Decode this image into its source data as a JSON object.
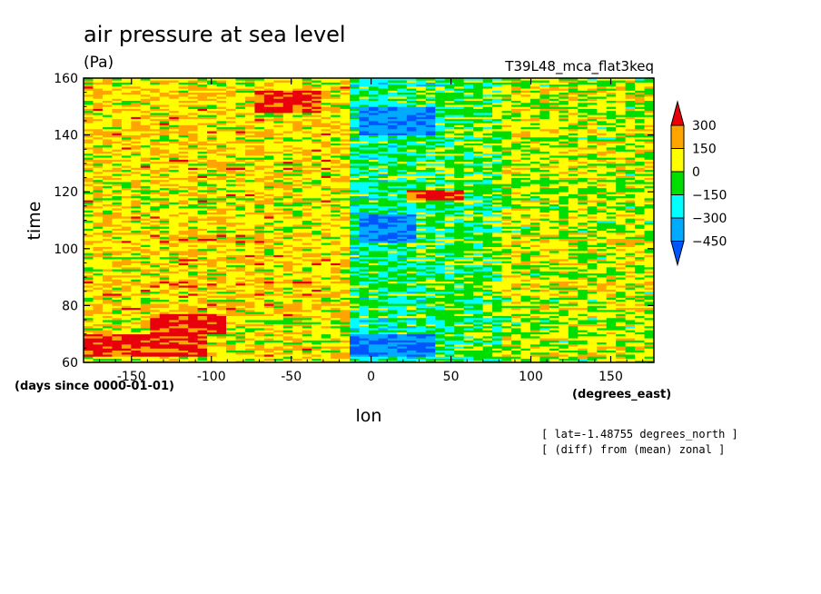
{
  "chart_data": {
    "type": "heatmap",
    "title": "air pressure at sea level",
    "units": "(Pa)",
    "run_label": "T39L48_mca_flat3keq",
    "xlabel": "lon",
    "ylabel": "time",
    "x_units": "(degrees_east)",
    "y_units": "(days since 0000-01-01)",
    "xlim": [
      -180,
      177
    ],
    "ylim": [
      60,
      160
    ],
    "x_ticks": [
      -150,
      -100,
      -50,
      0,
      50,
      100,
      150
    ],
    "y_ticks": [
      60,
      80,
      100,
      120,
      140,
      160
    ],
    "colorbar": {
      "levels": [
        300,
        150,
        0,
        -150,
        -300,
        -450
      ],
      "colors": [
        "#e8000b",
        "#ffa500",
        "#ffff00",
        "#00dd00",
        "#00ffff",
        "#00aaff",
        "#0055ff"
      ],
      "extend": "both"
    },
    "notes": [
      "[ lat=-1.48755 degrees_north ]",
      "[ (diff) from (mean) zonal ]"
    ],
    "pattern": {
      "west_band": [
        -180,
        -15
      ],
      "west_typical": [
        0,
        300
      ],
      "east_band": [
        -15,
        80
      ],
      "east_typical": [
        -450,
        0
      ],
      "high_patches": [
        {
          "lon": [
            -75,
            -30
          ],
          "time": [
            148,
            156
          ],
          "value": 300
        },
        {
          "lon": [
            -140,
            -90
          ],
          "time": [
            70,
            77
          ],
          "value": 300
        },
        {
          "lon": [
            -180,
            -100
          ],
          "time": [
            62,
            70
          ],
          "value": 300
        },
        {
          "lon": [
            20,
            60
          ],
          "time": [
            117,
            121
          ],
          "value": 300
        }
      ],
      "low_patches": [
        {
          "lon": [
            -15,
            40
          ],
          "time": [
            62,
            70
          ],
          "value": -450
        },
        {
          "lon": [
            -10,
            30
          ],
          "time": [
            102,
            112
          ],
          "value": -450
        },
        {
          "lon": [
            -5,
            40
          ],
          "time": [
            140,
            150
          ],
          "value": -450
        }
      ]
    }
  }
}
